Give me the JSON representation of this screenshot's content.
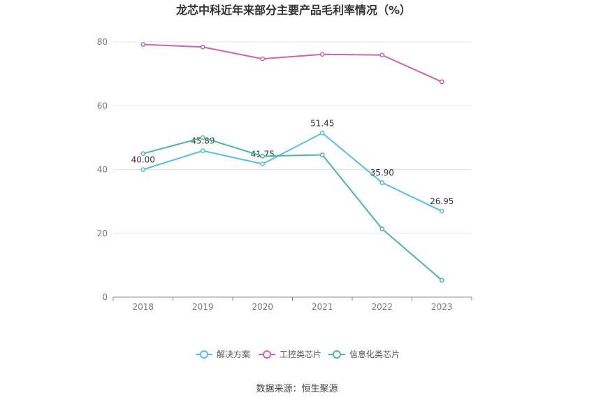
{
  "chart_data": {
    "type": "line",
    "title": "龙芯中科近年来部分主要产品毛利率情况（%）",
    "categories": [
      "2018",
      "2019",
      "2020",
      "2021",
      "2022",
      "2023"
    ],
    "ylim": [
      0,
      80
    ],
    "yticks": [
      "0",
      "20",
      "40",
      "60",
      "80"
    ],
    "series": [
      {
        "name": "解决方案",
        "color": "#56bdec",
        "values": [
          40.0,
          45.89,
          41.75,
          51.45,
          35.9,
          26.95
        ],
        "labels": [
          "40.00",
          "45.89",
          "41.75",
          "51.45",
          "35.90",
          "26.95"
        ]
      },
      {
        "name": "工控类芯片",
        "color": "#d462a6",
        "values": [
          79.2,
          78.4,
          74.7,
          76.1,
          75.9,
          67.5
        ]
      },
      {
        "name": "信息化类芯片",
        "color": "#4db897",
        "values": [
          45.0,
          50.0,
          44.2,
          44.6,
          21.4,
          5.3
        ]
      }
    ],
    "source": "数据来源：恒生聚源"
  }
}
